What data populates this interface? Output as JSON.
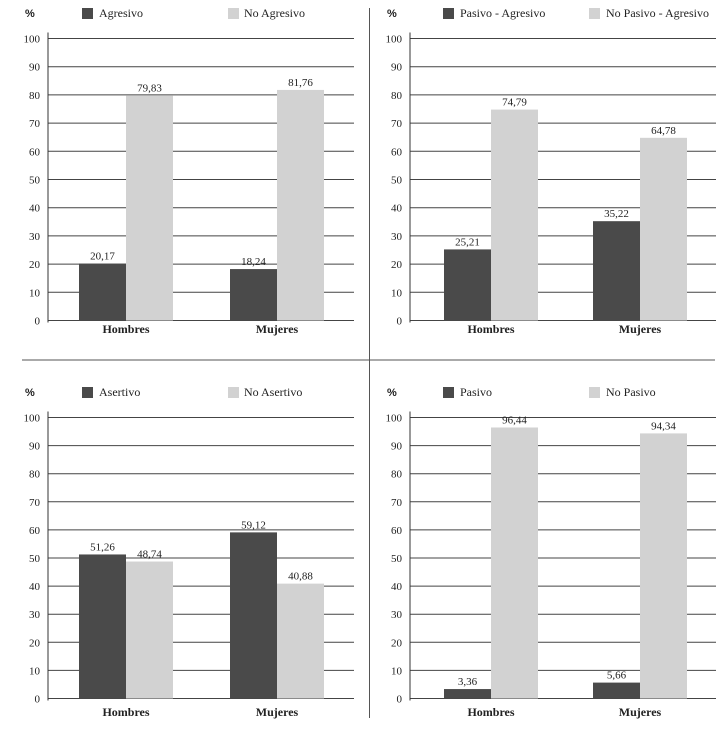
{
  "chart_data": [
    {
      "type": "bar",
      "ylabel": "%",
      "ylim": [
        0,
        100
      ],
      "ticks": [
        0,
        10,
        20,
        30,
        40,
        50,
        60,
        70,
        80,
        90,
        100
      ],
      "grid": true,
      "categories": [
        "Hombres",
        "Mujeres"
      ],
      "series": [
        {
          "name": "Agresivo",
          "color": "#4a4a4a",
          "values": [
            20.17,
            18.24
          ],
          "labels": [
            "20,17",
            "18,24"
          ]
        },
        {
          "name": "No Agresivo",
          "color": "#d2d2d2",
          "values": [
            79.83,
            81.76
          ],
          "labels": [
            "79,83",
            "81,76"
          ]
        }
      ]
    },
    {
      "type": "bar",
      "ylabel": "%",
      "ylim": [
        0,
        100
      ],
      "ticks": [
        0,
        10,
        20,
        30,
        40,
        50,
        60,
        70,
        80,
        90,
        100
      ],
      "grid": true,
      "categories": [
        "Hombres",
        "Mujeres"
      ],
      "series": [
        {
          "name": "Pasivo - Agresivo",
          "color": "#4a4a4a",
          "values": [
            25.21,
            35.22
          ],
          "labels": [
            "25,21",
            "35,22"
          ]
        },
        {
          "name": "No Pasivo - Agresivo",
          "color": "#d2d2d2",
          "values": [
            74.79,
            64.78
          ],
          "labels": [
            "74,79",
            "64,78"
          ]
        }
      ]
    },
    {
      "type": "bar",
      "ylabel": "%",
      "ylim": [
        0,
        100
      ],
      "ticks": [
        0,
        10,
        20,
        30,
        40,
        50,
        60,
        70,
        80,
        90,
        100
      ],
      "grid": true,
      "categories": [
        "Hombres",
        "Mujeres"
      ],
      "series": [
        {
          "name": "Asertivo",
          "color": "#4a4a4a",
          "values": [
            51.26,
            59.12
          ],
          "labels": [
            "51,26",
            "59,12"
          ]
        },
        {
          "name": "No Asertivo",
          "color": "#d2d2d2",
          "values": [
            48.74,
            40.88
          ],
          "labels": [
            "48,74",
            "40,88"
          ]
        }
      ]
    },
    {
      "type": "bar",
      "ylabel": "%",
      "ylim": [
        0,
        100
      ],
      "ticks": [
        0,
        10,
        20,
        30,
        40,
        50,
        60,
        70,
        80,
        90,
        100
      ],
      "grid": true,
      "categories": [
        "Hombres",
        "Mujeres"
      ],
      "series": [
        {
          "name": "Pasivo",
          "color": "#4a4a4a",
          "values": [
            3.36,
            5.66
          ],
          "labels": [
            "3,36",
            "5,66"
          ]
        },
        {
          "name": "No Pasivo",
          "color": "#d2d2d2",
          "values": [
            96.44,
            94.34
          ],
          "labels": [
            "96,44",
            "94,34"
          ]
        }
      ]
    }
  ]
}
